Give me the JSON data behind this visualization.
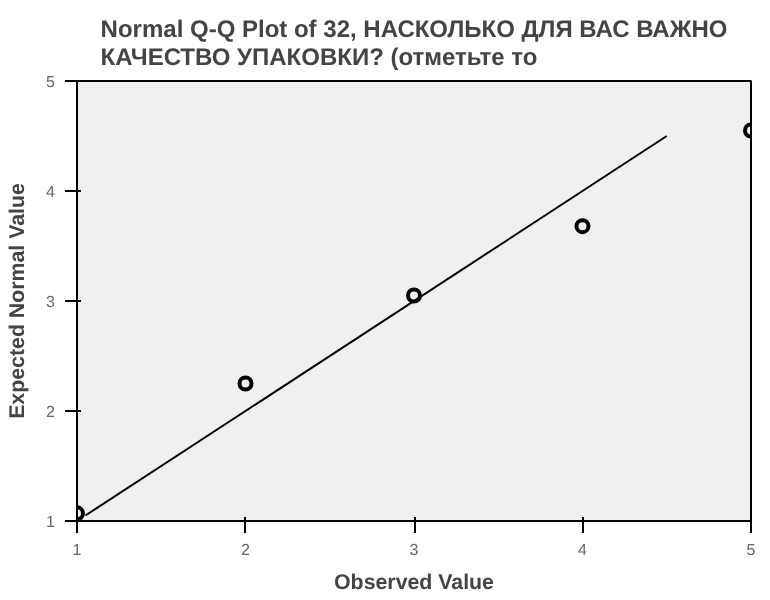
{
  "chart_data": {
    "type": "scatter",
    "title": "Normal Q-Q Plot of 32, НАСКОЛЬКО ДЛЯ ВАС ВАЖНО КАЧЕСТВО УПАКОВКИ? (отметьте то",
    "xlabel": "Observed Value",
    "ylabel": "Expected Normal Value",
    "xlim": [
      1,
      5
    ],
    "ylim": [
      1,
      5
    ],
    "xticks": [
      1,
      2,
      3,
      4,
      5
    ],
    "yticks": [
      1,
      2,
      3,
      4,
      5
    ],
    "grid": false,
    "marker": "circle",
    "series": [
      {
        "color": "#000000",
        "x": [
          1,
          2,
          3,
          4,
          5
        ],
        "values": [
          1.07,
          2.25,
          3.05,
          3.68,
          4.55
        ]
      },
      {
        "type": "line",
        "marker": "none",
        "color": "#000000",
        "x": [
          1.05,
          4.5
        ],
        "values": [
          1.05,
          4.5
        ]
      }
    ]
  }
}
